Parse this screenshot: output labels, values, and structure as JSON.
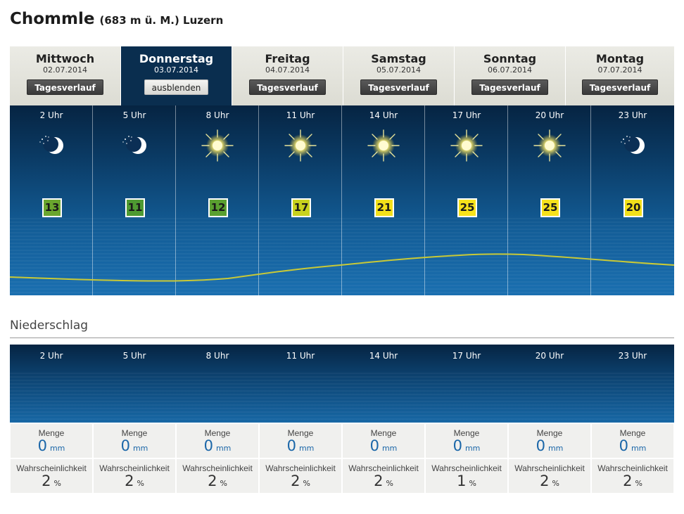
{
  "header": {
    "place": "Chommle",
    "meta": "(683 m ü. M.) Luzern"
  },
  "tabs": [
    {
      "day": "Mittwoch",
      "date": "02.07.2014",
      "button": "Tagesverlauf",
      "active": false
    },
    {
      "day": "Donnerstag",
      "date": "03.07.2014",
      "button": "ausblenden",
      "active": true
    },
    {
      "day": "Freitag",
      "date": "04.07.2014",
      "button": "Tagesverlauf",
      "active": false
    },
    {
      "day": "Samstag",
      "date": "05.07.2014",
      "button": "Tagesverlauf",
      "active": false
    },
    {
      "day": "Sonntag",
      "date": "06.07.2014",
      "button": "Tagesverlauf",
      "active": false
    },
    {
      "day": "Montag",
      "date": "07.07.2014",
      "button": "Tagesverlauf",
      "active": false
    }
  ],
  "hourly": [
    {
      "time": "2 Uhr",
      "icon": "moon-stars-icon",
      "temp": "13",
      "temp_color": "#6aa62e"
    },
    {
      "time": "5 Uhr",
      "icon": "moon-stars-icon",
      "temp": "11",
      "temp_color": "#4e9a32"
    },
    {
      "time": "8 Uhr",
      "icon": "sun-icon",
      "temp": "12",
      "temp_color": "#5aa030"
    },
    {
      "time": "11 Uhr",
      "icon": "sun-icon",
      "temp": "17",
      "temp_color": "#c8d21e"
    },
    {
      "time": "14 Uhr",
      "icon": "sun-icon",
      "temp": "21",
      "temp_color": "#f2e01a"
    },
    {
      "time": "17 Uhr",
      "icon": "sun-icon",
      "temp": "25",
      "temp_color": "#f7e21b"
    },
    {
      "time": "20 Uhr",
      "icon": "sun-icon",
      "temp": "25",
      "temp_color": "#f7e21b"
    },
    {
      "time": "23 Uhr",
      "icon": "moon-stars-icon",
      "temp": "20",
      "temp_color": "#f2e01a"
    }
  ],
  "niederschlag": {
    "title": "Niederschlag",
    "menge_label": "Menge",
    "menge_unit": "mm",
    "wahr_label": "Wahrscheinlichkeit",
    "wahr_unit": "%",
    "hours": [
      {
        "time": "2 Uhr",
        "menge": "0",
        "wahr": "2"
      },
      {
        "time": "5 Uhr",
        "menge": "0",
        "wahr": "2"
      },
      {
        "time": "8 Uhr",
        "menge": "0",
        "wahr": "2"
      },
      {
        "time": "11 Uhr",
        "menge": "0",
        "wahr": "2"
      },
      {
        "time": "14 Uhr",
        "menge": "0",
        "wahr": "2"
      },
      {
        "time": "17 Uhr",
        "menge": "0",
        "wahr": "1"
      },
      {
        "time": "20 Uhr",
        "menge": "0",
        "wahr": "2"
      },
      {
        "time": "23 Uhr",
        "menge": "0",
        "wahr": "2"
      }
    ]
  },
  "colors": {
    "curve": "#c9c936",
    "sun": "#fff27a",
    "moon": "#ffffff"
  }
}
